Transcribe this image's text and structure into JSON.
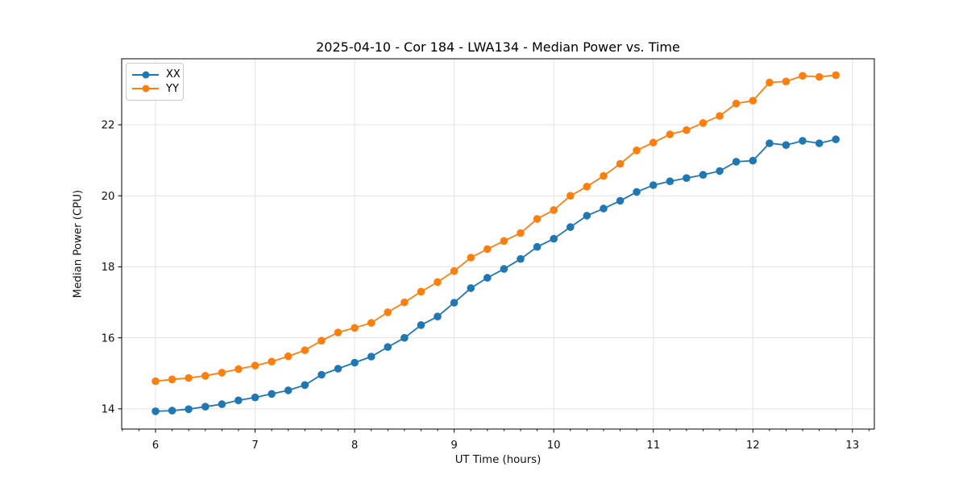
{
  "figure": {
    "title": "2025-04-10 - Cor 184 - LWA134 - Median Power vs. Time",
    "xlabel": "UT Time (hours)",
    "ylabel": "Median Power (CPU)"
  },
  "legend": {
    "position": "upper left",
    "entries": [
      {
        "label": "XX",
        "color": "#1f77b4"
      },
      {
        "label": "YY",
        "color": "#ff7f0e"
      }
    ]
  },
  "chart_data": {
    "type": "line",
    "title": "2025-04-10 - Cor 184 - LWA134 - Median Power vs. Time",
    "xlabel": "UT Time (hours)",
    "ylabel": "Median Power (CPU)",
    "xlim": [
      5.66,
      13.22
    ],
    "ylim": [
      13.43,
      23.86
    ],
    "x_ticks": [
      6,
      7,
      8,
      9,
      10,
      11,
      12,
      13
    ],
    "y_ticks": [
      14,
      16,
      18,
      20,
      22
    ],
    "x_minor_step": 0.1667,
    "grid": true,
    "background": "#ffffff",
    "grid_color": "#e3e3e3",
    "marker": "circle",
    "legend_position": "upper left",
    "x": [
      6.0,
      6.167,
      6.333,
      6.5,
      6.667,
      6.833,
      7.0,
      7.167,
      7.333,
      7.5,
      7.667,
      7.833,
      8.0,
      8.167,
      8.333,
      8.5,
      8.667,
      8.833,
      9.0,
      9.167,
      9.333,
      9.5,
      9.667,
      9.833,
      10.0,
      10.167,
      10.333,
      10.5,
      10.667,
      10.833,
      11.0,
      11.167,
      11.333,
      11.5,
      11.667,
      11.833,
      12.0,
      12.167,
      12.333,
      12.5,
      12.667,
      12.833
    ],
    "series": [
      {
        "name": "XX",
        "color": "#1f77b4",
        "values": [
          13.93,
          13.95,
          13.99,
          14.06,
          14.13,
          14.24,
          14.32,
          14.42,
          14.52,
          14.67,
          14.96,
          15.13,
          15.3,
          15.47,
          15.74,
          16.0,
          16.36,
          16.6,
          16.99,
          17.4,
          17.69,
          17.94,
          18.22,
          18.56,
          18.79,
          19.12,
          19.44,
          19.64,
          19.86,
          20.11,
          20.3,
          20.41,
          20.5,
          20.59,
          20.7,
          20.96,
          20.99,
          21.48,
          21.43,
          21.55,
          21.48,
          21.59
        ]
      },
      {
        "name": "YY",
        "color": "#ff7f0e",
        "values": [
          14.78,
          14.83,
          14.87,
          14.93,
          15.02,
          15.12,
          15.22,
          15.33,
          15.48,
          15.65,
          15.92,
          16.15,
          16.28,
          16.42,
          16.72,
          17.0,
          17.3,
          17.57,
          17.88,
          18.26,
          18.5,
          18.73,
          18.95,
          19.35,
          19.6,
          20.0,
          20.26,
          20.56,
          20.9,
          21.28,
          21.5,
          21.73,
          21.85,
          22.05,
          22.25,
          22.6,
          22.68,
          23.19,
          23.22,
          23.38,
          23.35,
          23.4
        ]
      }
    ]
  }
}
